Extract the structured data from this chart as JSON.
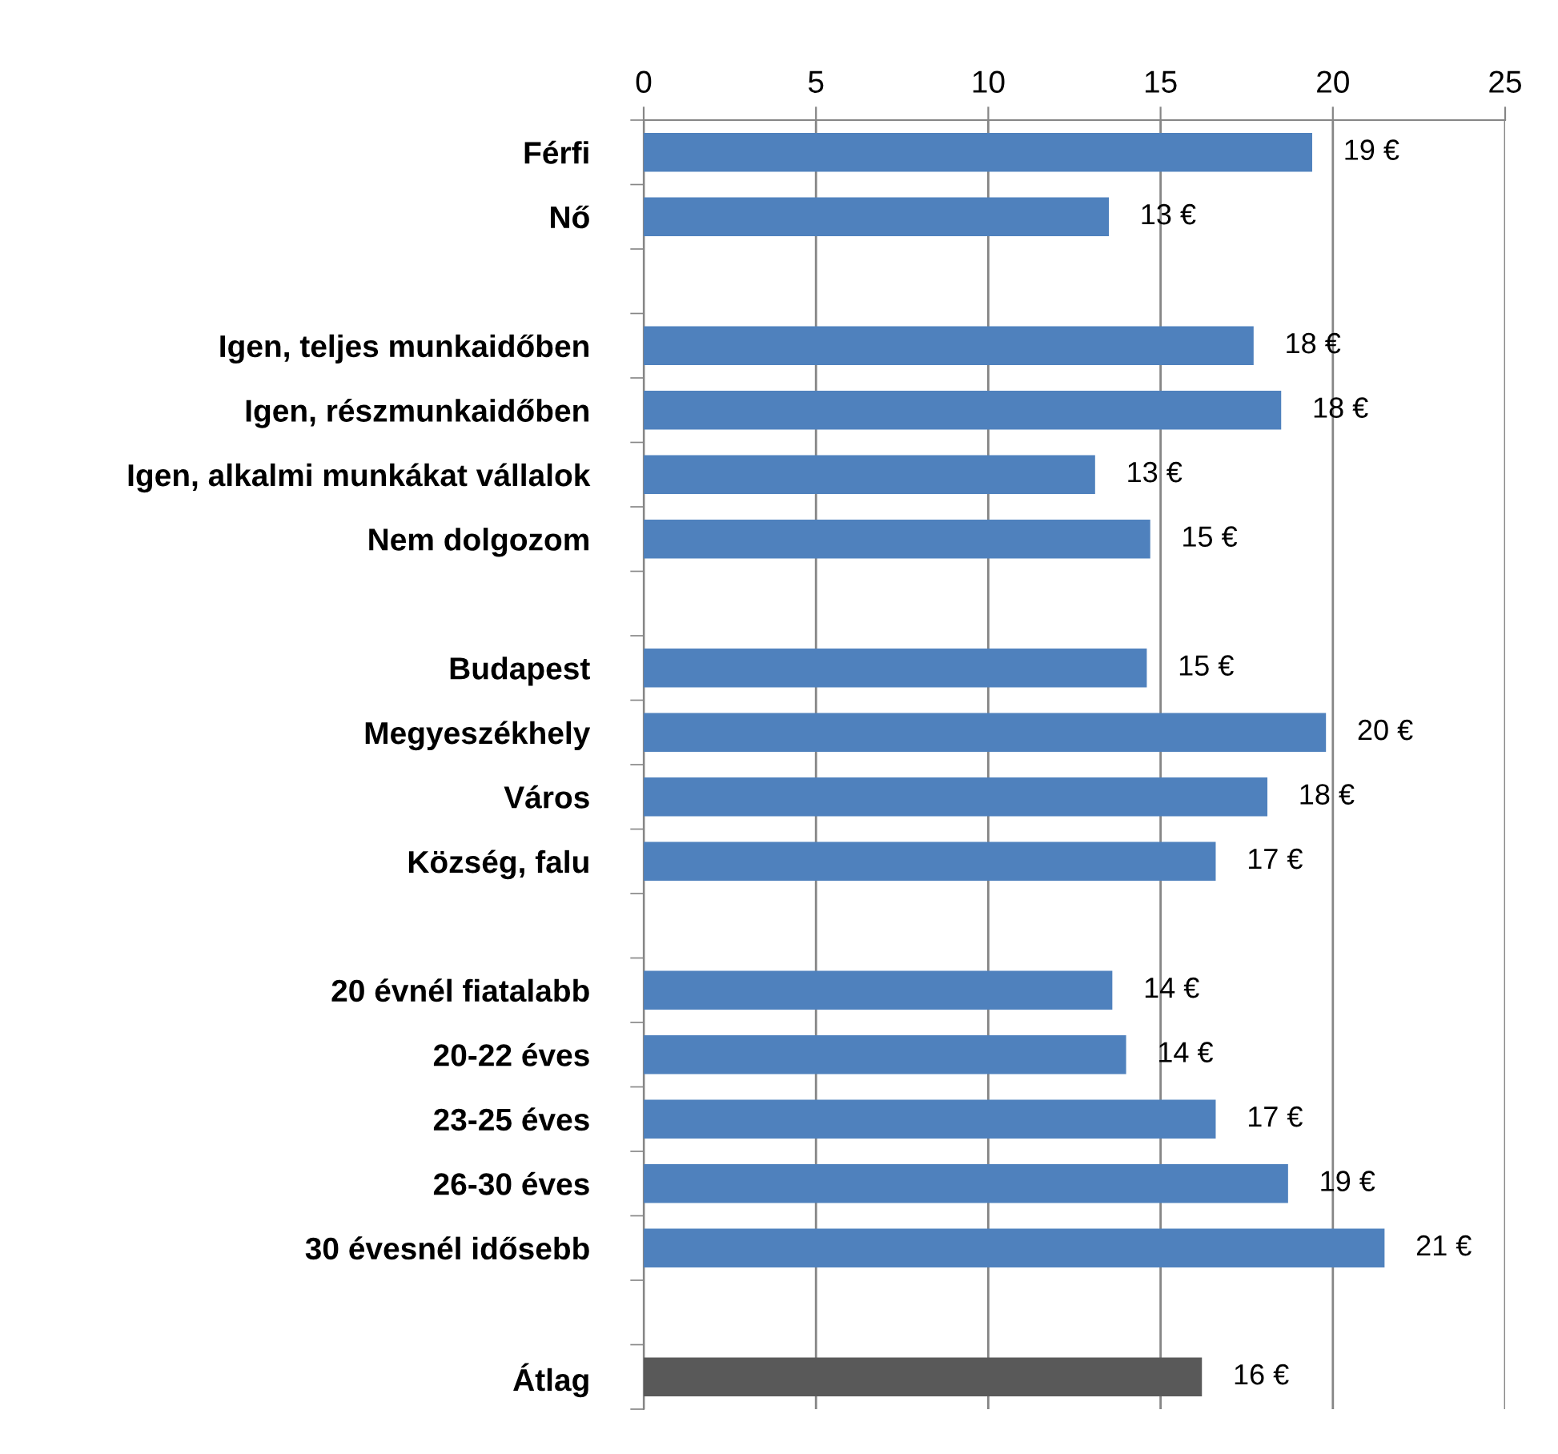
{
  "chart_data": {
    "type": "bar",
    "orientation": "horizontal",
    "categories": [
      "Férfi",
      "Nő",
      null,
      "Igen, teljes munkaidőben",
      "Igen, részmunkaidőben",
      "Igen, alkalmi munkákat vállalok",
      "Nem dolgozom",
      null,
      "Budapest",
      "Megyeszékhely",
      "Város",
      "Község, falu",
      null,
      "20 évnél fiatalabb",
      "20-22 éves",
      "23-25 éves",
      "26-30 éves",
      "30 évesnél idősebb",
      null,
      "Átlag"
    ],
    "values": [
      19.4,
      13.5,
      null,
      17.7,
      18.5,
      13.1,
      14.7,
      null,
      14.6,
      19.8,
      18.1,
      16.6,
      null,
      13.6,
      14.0,
      16.6,
      18.7,
      21.5,
      null,
      16.2
    ],
    "colors": [
      "#4f81bd",
      "#4f81bd",
      "#4f81bd",
      "#4f81bd",
      "#4f81bd",
      "#4f81bd",
      "#4f81bd",
      "#4f81bd",
      "#4f81bd",
      "#4f81bd",
      "#4f81bd",
      "#4f81bd",
      "#4f81bd",
      "#4f81bd",
      "#4f81bd",
      "#4f81bd",
      "#4f81bd",
      "#4f81bd",
      "#4f81bd",
      "#595959"
    ],
    "value_labels": [
      "19 €",
      "13 €",
      null,
      "18 €",
      "18 €",
      "13 €",
      "15 €",
      null,
      "15 €",
      "20 €",
      "18 €",
      "17 €",
      null,
      "14 €",
      "14 €",
      "17 €",
      "19 €",
      "21 €",
      null,
      "16 €"
    ],
    "xlim": [
      0,
      25
    ],
    "xticks": [
      0,
      5,
      10,
      15,
      20,
      25
    ],
    "grid": "x",
    "legend": false
  }
}
